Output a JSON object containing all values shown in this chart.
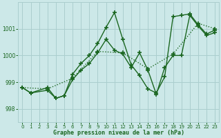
{
  "title": "Graphe pression niveau de la mer (hPa)",
  "background_color": "#cce8e8",
  "grid_color": "#aacece",
  "line_color": "#1a6620",
  "xlim": [
    -0.5,
    23.5
  ],
  "ylim": [
    997.5,
    1002.0
  ],
  "yticks": [
    998,
    999,
    1000,
    1001
  ],
  "xticks": [
    0,
    1,
    2,
    3,
    4,
    5,
    6,
    7,
    8,
    9,
    10,
    11,
    12,
    13,
    14,
    15,
    16,
    17,
    18,
    19,
    20,
    21,
    22,
    23
  ],
  "series1_x": [
    0,
    1,
    3,
    4,
    5,
    6,
    7,
    8,
    9,
    10,
    11,
    12,
    13,
    14,
    15,
    16,
    17,
    18,
    19,
    20,
    21,
    22,
    23
  ],
  "series1_y": [
    998.8,
    998.6,
    998.8,
    998.4,
    998.5,
    999.3,
    999.7,
    1000.0,
    1000.45,
    1001.05,
    1001.6,
    1000.6,
    999.65,
    999.25,
    998.75,
    998.6,
    999.2,
    1001.45,
    1001.5,
    1001.55,
    1001.15,
    1000.8,
    1000.95
  ],
  "series2_x": [
    0,
    1,
    3,
    4,
    5,
    6,
    7,
    8,
    9,
    10,
    11,
    12,
    13,
    14,
    15,
    16,
    17,
    18,
    19,
    20,
    21,
    22,
    23
  ],
  "series2_y": [
    998.8,
    998.6,
    998.7,
    998.4,
    998.5,
    999.1,
    999.45,
    999.7,
    1000.1,
    1000.6,
    1000.2,
    1000.05,
    999.55,
    1000.1,
    999.45,
    998.55,
    999.55,
    1000.0,
    1000.0,
    1001.5,
    1001.1,
    1000.75,
    1000.85
  ],
  "series3_x": [
    0,
    3,
    6,
    9,
    12,
    15,
    18,
    21,
    23
  ],
  "series3_y": [
    998.8,
    998.75,
    999.15,
    1000.15,
    1000.1,
    999.5,
    1000.05,
    1001.2,
    1001.0
  ]
}
